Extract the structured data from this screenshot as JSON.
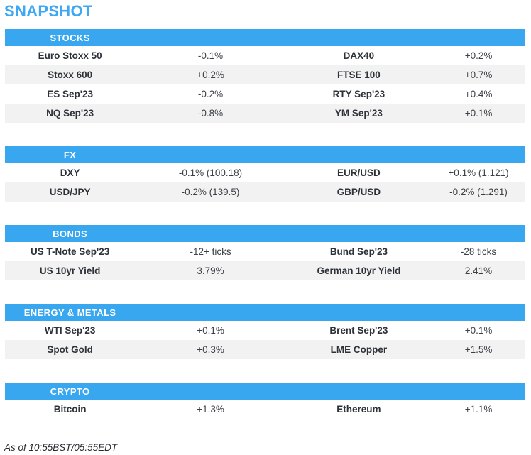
{
  "title": "SNAPSHOT",
  "footer": "As of 10:55BST/05:55EDT",
  "colors": {
    "accent_blue": "#38a7f0",
    "title_blue": "#3fa8f3",
    "row_alt_gray": "#f2f2f2",
    "text_dark": "#2d3138"
  },
  "sections": [
    {
      "header": "STOCKS",
      "rows": [
        [
          "Euro Stoxx 50",
          "-0.1%",
          "DAX40",
          "+0.2%"
        ],
        [
          "Stoxx 600",
          "+0.2%",
          "FTSE 100",
          "+0.7%"
        ],
        [
          "ES Sep'23",
          "-0.2%",
          "RTY Sep'23",
          "+0.4%"
        ],
        [
          "NQ Sep'23",
          "-0.8%",
          "YM Sep'23",
          "+0.1%"
        ]
      ]
    },
    {
      "header": "FX",
      "rows": [
        [
          "DXY",
          "-0.1% (100.18)",
          "EUR/USD",
          "+0.1% (1.121)"
        ],
        [
          "USD/JPY",
          "-0.2% (139.5)",
          "GBP/USD",
          "-0.2% (1.291)"
        ]
      ]
    },
    {
      "header": "BONDS",
      "rows": [
        [
          "US T-Note Sep'23",
          "-12+ ticks",
          "Bund Sep'23",
          "-28 ticks"
        ],
        [
          "US 10yr Yield",
          "3.79%",
          "German 10yr Yield",
          "2.41%"
        ]
      ]
    },
    {
      "header": "ENERGY & METALS",
      "rows": [
        [
          "WTI Sep'23",
          "+0.1%",
          "Brent Sep'23",
          "+0.1%"
        ],
        [
          "Spot Gold",
          "+0.3%",
          "LME Copper",
          "+1.5%"
        ]
      ]
    },
    {
      "header": "CRYPTO",
      "rows": [
        [
          "Bitcoin",
          "+1.3%",
          "Ethereum",
          "+1.1%"
        ]
      ]
    }
  ]
}
